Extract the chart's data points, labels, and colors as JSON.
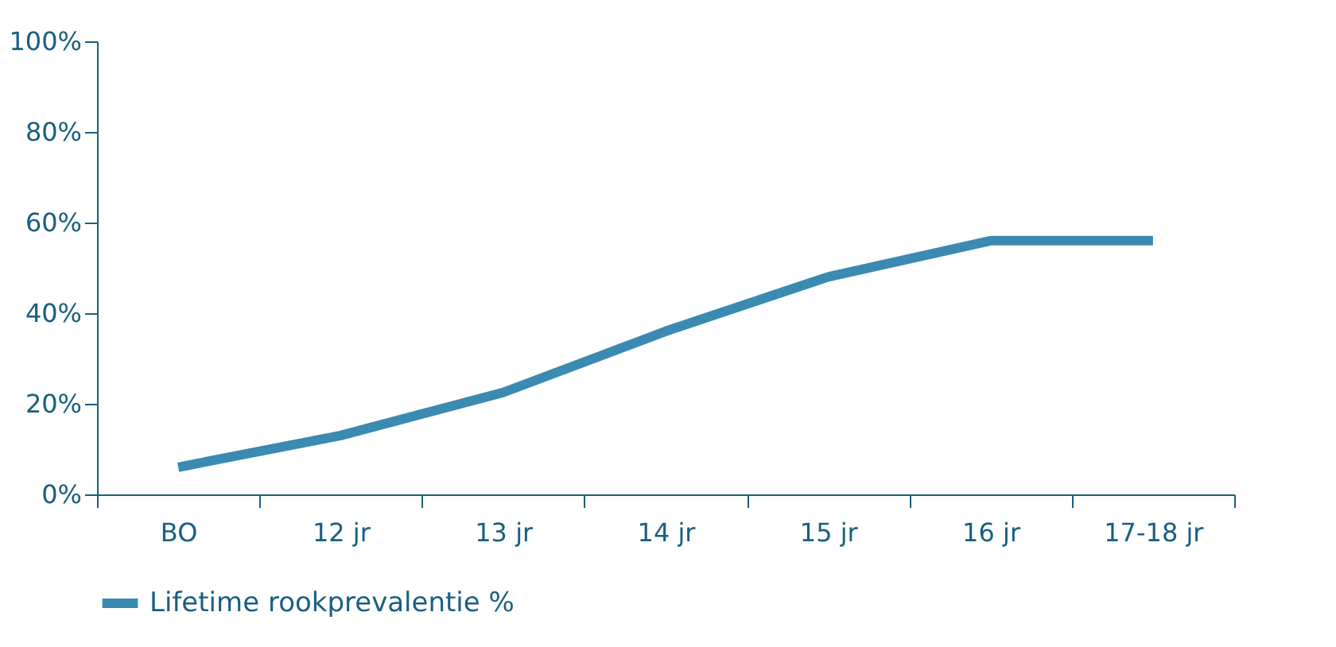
{
  "chart_data": {
    "type": "line",
    "categories": [
      "BO",
      "12 jr",
      "13 jr",
      "14 jr",
      "15 jr",
      "16 jr",
      "17-18 jr"
    ],
    "series": [
      {
        "name": "Lifetime rookprevalentie %",
        "color": "#3a8ab2",
        "values": [
          6,
          13,
          22.5,
          36,
          48,
          56,
          56
        ]
      }
    ],
    "ylim": [
      0,
      100
    ],
    "yticks": [
      {
        "value": 0,
        "label": "0%"
      },
      {
        "value": 20,
        "label": "20%"
      },
      {
        "value": 40,
        "label": "40%"
      },
      {
        "value": 60,
        "label": "60%"
      },
      {
        "value": 80,
        "label": "80%"
      },
      {
        "value": 100,
        "label": "100%"
      }
    ],
    "grid": false,
    "legend": "bottom",
    "marker": "none",
    "line_style": "solid"
  }
}
